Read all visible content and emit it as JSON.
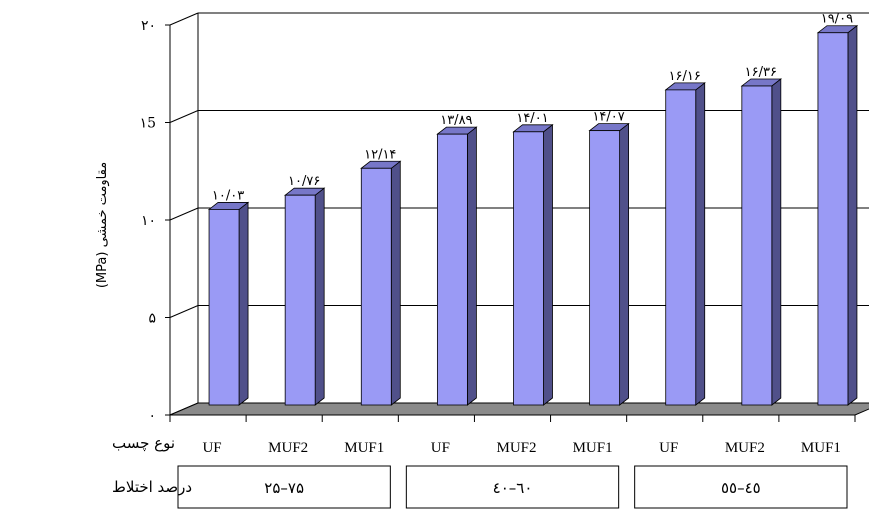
{
  "chart_data": {
    "type": "bar",
    "ylabel": "مقاومت خمشی (MPa)",
    "ylim": [
      0,
      20
    ],
    "yticks": [
      "۰",
      "۵",
      "۱۰",
      "۱5",
      "۲۰"
    ],
    "categories": [
      "UF",
      "MUF2",
      "MUF1",
      "UF",
      "MUF2",
      "MUF1",
      "UF",
      "MUF2",
      "MUF1"
    ],
    "values": [
      10.03,
      10.76,
      12.14,
      13.89,
      14.01,
      14.07,
      16.16,
      16.36,
      19.09
    ],
    "data_labels": [
      "۱۰/۰۳",
      "۱۰/۷۶",
      "۱۲/۱۴",
      "۱۳/۸۹",
      "۱۴/۰۱",
      "۱۴/۰۷",
      "۱۶/۱۶",
      "۱۶/۳۶",
      "۱۹/۰۹"
    ],
    "groups": [
      "۲۵–۷۵",
      "٤۰–٦۰",
      "٤٥–٥٥"
    ],
    "category_axis_title": "نوع چسب",
    "group_axis_title": "درصد اختلاط",
    "grid": true,
    "colors": {
      "bar_front": "#9a9af5",
      "bar_side": "#50508a",
      "bar_top": "#7777c8",
      "floor": "#8a8a8a"
    }
  }
}
